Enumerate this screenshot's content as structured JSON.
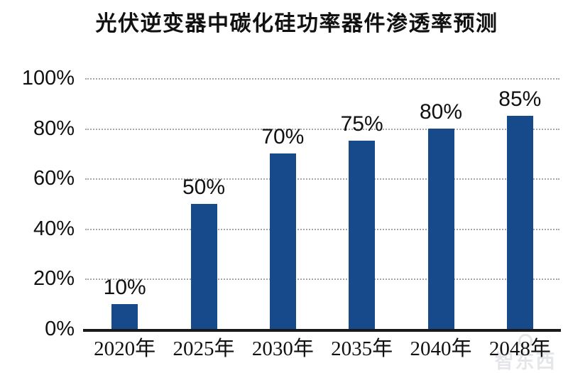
{
  "page": {
    "background": "#ffffff"
  },
  "chart_data": {
    "type": "bar",
    "title": "光伏逆变器中碳化硅功率器件渗透率预测",
    "categories": [
      "2020年",
      "2025年",
      "2030年",
      "2035年",
      "2040年",
      "2048年"
    ],
    "values": [
      10,
      50,
      70,
      75,
      80,
      85
    ],
    "data_labels": [
      "10%",
      "50%",
      "70%",
      "75%",
      "80%",
      "85%"
    ],
    "xlabel": "",
    "ylabel": "",
    "ylim": [
      0,
      100
    ],
    "y_ticks": [
      {
        "value": 100,
        "label": "100%"
      },
      {
        "value": 80,
        "label": "80%"
      },
      {
        "value": 60,
        "label": "60%"
      },
      {
        "value": 40,
        "label": "40%"
      },
      {
        "value": 20,
        "label": "20%"
      },
      {
        "value": 0,
        "label": "0%"
      }
    ],
    "grid": "horizontal-dotted",
    "legend": "none",
    "bar_color": "#164a8b",
    "grid_color": "#a6a6a6",
    "axis_color": "#1a1a1a",
    "text_color": "#111111"
  },
  "watermark": {
    "text": "智东西"
  }
}
